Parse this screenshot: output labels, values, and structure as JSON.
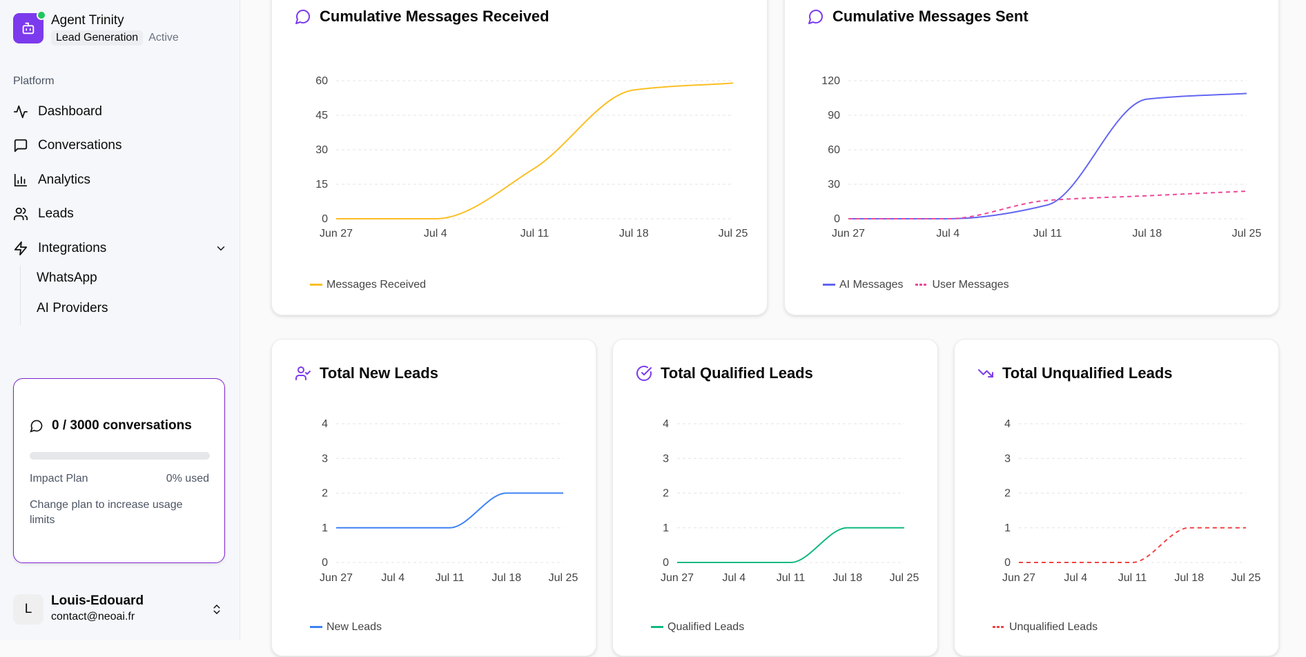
{
  "agent": {
    "name": "Agent Trinity",
    "category": "Lead Generation",
    "status": "Active"
  },
  "sidebar": {
    "section": "Platform",
    "items": [
      {
        "label": "Dashboard",
        "icon": "activity-icon"
      },
      {
        "label": "Conversations",
        "icon": "message-square-icon"
      },
      {
        "label": "Analytics",
        "icon": "bar-chart-icon"
      },
      {
        "label": "Leads",
        "icon": "users-icon"
      },
      {
        "label": "Integrations",
        "icon": "zap-icon"
      }
    ],
    "subitems": [
      {
        "label": "WhatsApp"
      },
      {
        "label": "AI Providers"
      }
    ]
  },
  "usage": {
    "title": "0 / 3000 conversations",
    "plan": "Impact Plan",
    "used": "0% used",
    "used_percent": 0,
    "hint": "Change plan to increase usage limits"
  },
  "user": {
    "initial": "L",
    "name": "Louis-Edouard",
    "email": "contact@neoai.fr"
  },
  "colors": {
    "accent": "#7c3aed",
    "received": "#fbbf24",
    "ai": "#6366f1",
    "user": "#ec4899",
    "new": "#3b82f6",
    "qualified": "#10b981",
    "unqualified": "#ef4444"
  },
  "chart_data": [
    {
      "type": "line",
      "title": "Cumulative Messages Received",
      "icon": "message-circle-icon",
      "categories": [
        "Jun 27",
        "Jul 4",
        "Jul 11",
        "Jul 18",
        "Jul 25"
      ],
      "yticks": [
        0,
        15,
        30,
        45,
        60
      ],
      "ylim": [
        0,
        60
      ],
      "grid": true,
      "legend": "bottom-left",
      "series": [
        {
          "name": "Messages Received",
          "values": [
            0,
            0,
            22,
            56,
            59
          ],
          "color": "#fbbf24",
          "dashed": false
        }
      ]
    },
    {
      "type": "line",
      "title": "Cumulative Messages Sent",
      "icon": "message-circle-icon",
      "categories": [
        "Jun 27",
        "Jul 4",
        "Jul 11",
        "Jul 18",
        "Jul 25"
      ],
      "yticks": [
        0,
        30,
        60,
        90,
        120
      ],
      "ylim": [
        0,
        120
      ],
      "grid": true,
      "legend": "bottom-left",
      "series": [
        {
          "name": "AI Messages",
          "values": [
            0,
            0,
            12,
            104,
            109
          ],
          "color": "#6366f1",
          "dashed": false
        },
        {
          "name": "User Messages",
          "values": [
            0,
            0,
            16,
            20,
            24
          ],
          "color": "#ec4899",
          "dashed": true
        }
      ]
    },
    {
      "type": "line",
      "title": "Total New Leads",
      "icon": "user-check-icon",
      "categories": [
        "Jun 27",
        "Jul 4",
        "Jul 11",
        "Jul 18",
        "Jul 25"
      ],
      "yticks": [
        0,
        1,
        2,
        3,
        4
      ],
      "ylim": [
        0,
        4
      ],
      "grid": true,
      "legend": "bottom-left",
      "series": [
        {
          "name": "New Leads",
          "values": [
            1,
            1,
            1,
            2,
            2
          ],
          "color": "#3b82f6",
          "dashed": false
        }
      ]
    },
    {
      "type": "line",
      "title": "Total Qualified Leads",
      "icon": "circle-check-icon",
      "categories": [
        "Jun 27",
        "Jul 4",
        "Jul 11",
        "Jul 18",
        "Jul 25"
      ],
      "yticks": [
        0,
        1,
        2,
        3,
        4
      ],
      "ylim": [
        0,
        4
      ],
      "grid": true,
      "legend": "bottom-left",
      "series": [
        {
          "name": "Qualified Leads",
          "values": [
            0,
            0,
            0,
            1,
            1
          ],
          "color": "#10b981",
          "dashed": false
        }
      ]
    },
    {
      "type": "line",
      "title": "Total Unqualified Leads",
      "icon": "trending-down-icon",
      "categories": [
        "Jun 27",
        "Jul 4",
        "Jul 11",
        "Jul 18",
        "Jul 25"
      ],
      "yticks": [
        0,
        1,
        2,
        3,
        4
      ],
      "ylim": [
        0,
        4
      ],
      "grid": true,
      "legend": "bottom-left",
      "series": [
        {
          "name": "Unqualified Leads",
          "values": [
            0,
            0,
            0,
            1,
            1
          ],
          "color": "#ef4444",
          "dashed": true
        }
      ]
    }
  ]
}
